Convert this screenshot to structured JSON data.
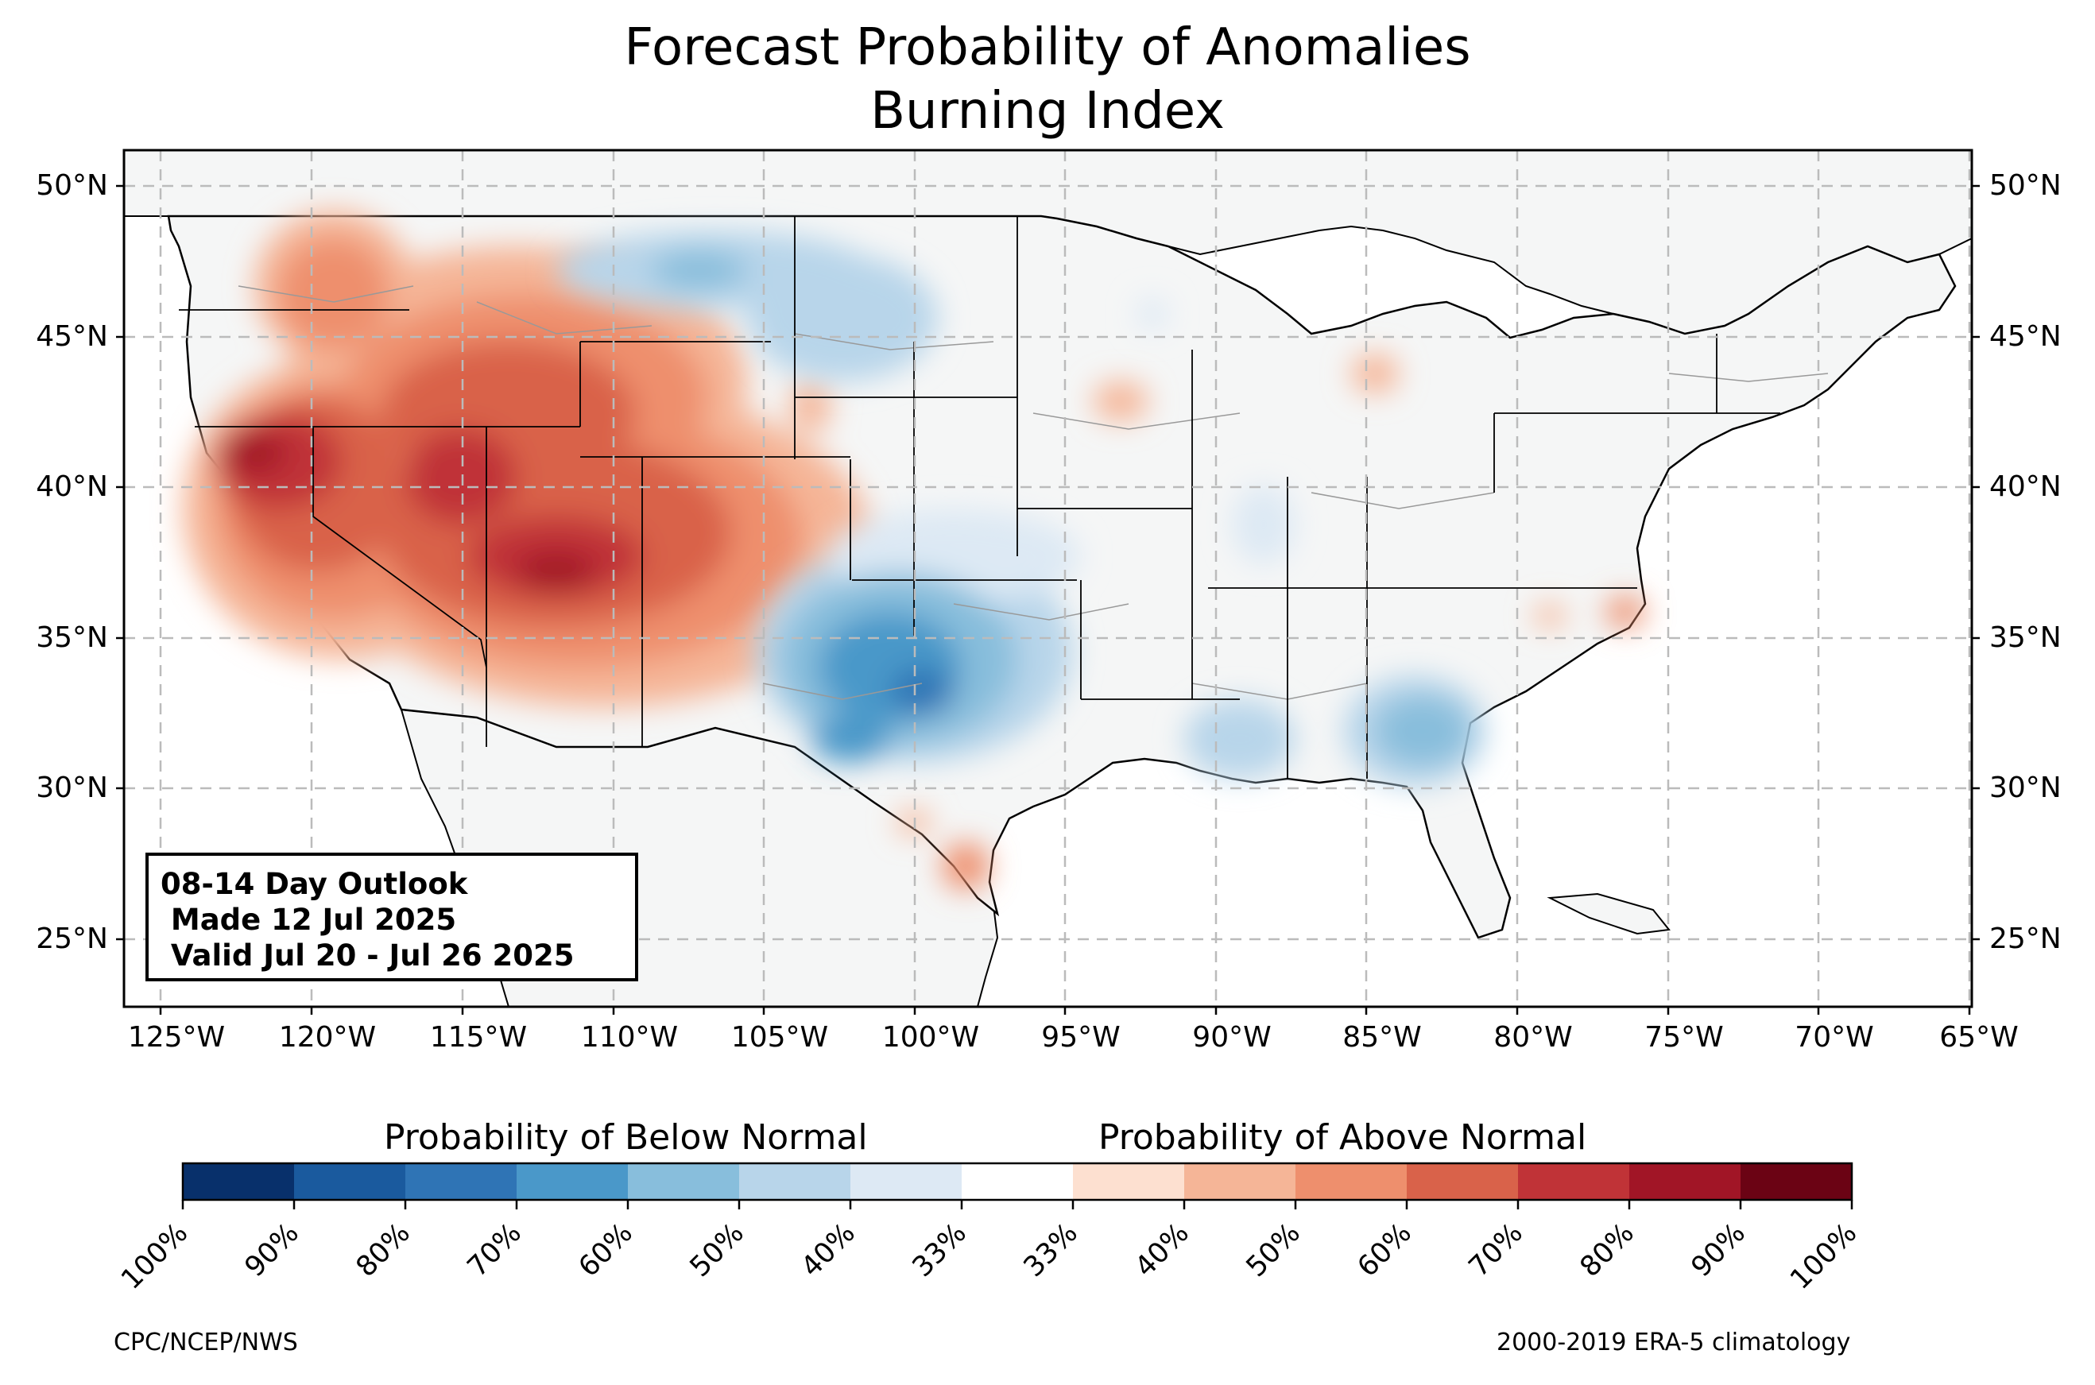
{
  "title": {
    "line1": "Forecast Probability of Anomalies",
    "line2": "Burning Index"
  },
  "outlook": {
    "line1": "08-14 Day Outlook",
    "line2": " Made 12 Jul 2025",
    "line3": " Valid Jul 20 - Jul 26 2025"
  },
  "axes": {
    "lat_labels": [
      "50°N",
      "45°N",
      "40°N",
      "35°N",
      "30°N",
      "25°N"
    ],
    "lon_labels": [
      "125°W",
      "120°W",
      "115°W",
      "110°W",
      "105°W",
      "100°W",
      "95°W",
      "90°W",
      "85°W",
      "80°W",
      "75°W",
      "70°W",
      "65°W"
    ]
  },
  "colorbar": {
    "below_title": "Probability of Below Normal",
    "above_title": "Probability of Above Normal",
    "ticks": [
      "100%",
      "90%",
      "80%",
      "70%",
      "60%",
      "50%",
      "40%",
      "33%",
      "33%",
      "40%",
      "50%",
      "60%",
      "70%",
      "80%",
      "90%",
      "100%"
    ],
    "colors": [
      "#08306b",
      "#1a5a9e",
      "#2f74b5",
      "#4a98c9",
      "#88bedc",
      "#b8d5ea",
      "#dde9f4",
      "#ffffff",
      "#fde0d0",
      "#f5b597",
      "#ee8f6d",
      "#d9624a",
      "#c03337",
      "#a11526",
      "#6b0314"
    ]
  },
  "footer": {
    "left": "CPC/NCEP/NWS",
    "right": "2000-2019 ERA-5 climatology"
  },
  "chart_data": {
    "type": "map",
    "projection": "Plate Carree",
    "lon_range": [
      -126.3,
      -64.9
    ],
    "lat_range": [
      22.8,
      51.2
    ],
    "land_color": "#f5f6f6",
    "ocean_color": "#ffffff",
    "grid": true,
    "regions": [
      {
        "area": "Northern California / Nevada / Utah / Arizona",
        "category": "above",
        "probability": "70-80%"
      },
      {
        "area": "Pacific Northwest / Idaho / Wyoming / Colorado",
        "category": "above",
        "probability": "50-70%"
      },
      {
        "area": "Oklahoma / Texas Panhandle",
        "category": "below",
        "probability": "60-70%"
      },
      {
        "area": "Northern Plains / Dakotas",
        "category": "below",
        "probability": "40-50%"
      },
      {
        "area": "Georgia / South Carolina",
        "category": "below",
        "probability": "40-60%"
      },
      {
        "area": "Mississippi / Alabama",
        "category": "below",
        "probability": "40-50%"
      },
      {
        "area": "South Texas",
        "category": "above",
        "probability": "40-50%"
      }
    ]
  }
}
